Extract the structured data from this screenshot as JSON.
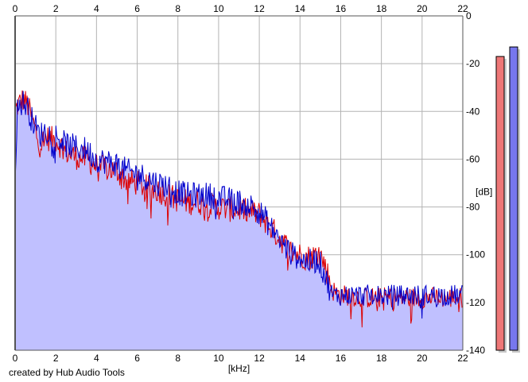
{
  "chart_data": {
    "type": "line",
    "title": "",
    "xlabel": "[kHz]",
    "ylabel": "[dB]",
    "xlim": [
      0,
      22
    ],
    "ylim": [
      -140,
      0
    ],
    "xticks": [
      "0",
      "2",
      "4",
      "6",
      "8",
      "10",
      "12",
      "14",
      "16",
      "18",
      "20",
      "22"
    ],
    "yticks": [
      "0",
      "-20",
      "-40",
      "-60",
      "-80",
      "-100",
      "-120",
      "-140"
    ],
    "grid": true,
    "series": [
      {
        "color": "#dd0000",
        "x": [
          0,
          0.1,
          0.25,
          0.4,
          0.6,
          0.8,
          1.0,
          1.2,
          1.5,
          2.0,
          2.5,
          3.0,
          3.5,
          4.0,
          4.5,
          5.0,
          5.5,
          6.0,
          6.5,
          7.0,
          7.5,
          8.0,
          8.5,
          9.0,
          9.5,
          10.0,
          10.5,
          11.0,
          11.5,
          12.0,
          12.3,
          12.6,
          13.0,
          13.3,
          13.6,
          14.0,
          14.3,
          14.6,
          14.9,
          15.0,
          15.2,
          15.4,
          15.6,
          16.0,
          16.5,
          17.0,
          17.5,
          18.0,
          18.5,
          19.0,
          19.5,
          20.0,
          20.5,
          21.0,
          21.5,
          22.0
        ],
        "values": [
          -40,
          -38,
          -36,
          -35,
          -37,
          -42,
          -48,
          -54,
          -51,
          -52,
          -57,
          -59,
          -60,
          -63,
          -64,
          -65,
          -69,
          -70,
          -72,
          -73,
          -75,
          -77,
          -78,
          -78,
          -79,
          -80,
          -81,
          -81,
          -82,
          -83,
          -86,
          -89,
          -93,
          -96,
          -99,
          -100,
          -101,
          -101,
          -99,
          -100,
          -104,
          -109,
          -115,
          -117,
          -117,
          -118,
          -118,
          -118,
          -118,
          -118,
          -118,
          -118,
          -118,
          -118,
          -118,
          -118
        ]
      },
      {
        "color": "#0000cc",
        "x": [
          0,
          0.1,
          0.25,
          0.4,
          0.6,
          0.8,
          1.0,
          1.2,
          1.5,
          2.0,
          2.5,
          3.0,
          3.5,
          4.0,
          4.5,
          5.0,
          5.5,
          6.0,
          6.5,
          7.0,
          7.5,
          8.0,
          8.5,
          9.0,
          9.5,
          10.0,
          10.5,
          11.0,
          11.5,
          12.0,
          12.3,
          12.6,
          13.0,
          13.3,
          13.6,
          14.0,
          14.3,
          14.6,
          14.9,
          15.0,
          15.2,
          15.4,
          15.6,
          16.0,
          16.5,
          17.0,
          17.5,
          18.0,
          18.5,
          19.0,
          19.5,
          20.0,
          20.5,
          21.0,
          21.5,
          22.0
        ],
        "values": [
          -68,
          -40,
          -37,
          -36,
          -38,
          -43,
          -46,
          -50,
          -48,
          -50,
          -54,
          -55,
          -56,
          -60,
          -61,
          -62,
          -65,
          -66,
          -68,
          -70,
          -71,
          -74,
          -75,
          -75,
          -75,
          -76,
          -77,
          -78,
          -79,
          -82,
          -85,
          -89,
          -94,
          -97,
          -100,
          -101,
          -103,
          -103,
          -102,
          -104,
          -108,
          -113,
          -117,
          -117,
          -117,
          -117,
          -117,
          -117,
          -117,
          -117,
          -117,
          -117,
          -117,
          -117,
          -117,
          -117
        ]
      }
    ],
    "level_meters": [
      {
        "color": "#ee7777",
        "level_db": -17
      },
      {
        "color": "#7777ee",
        "level_db": -13
      }
    ],
    "colors": {
      "fill": "#c0c0ff",
      "grid": "#b3b3b3",
      "axis": "#555555"
    }
  },
  "footer": {
    "credit": "created by Hub Audio Tools"
  }
}
